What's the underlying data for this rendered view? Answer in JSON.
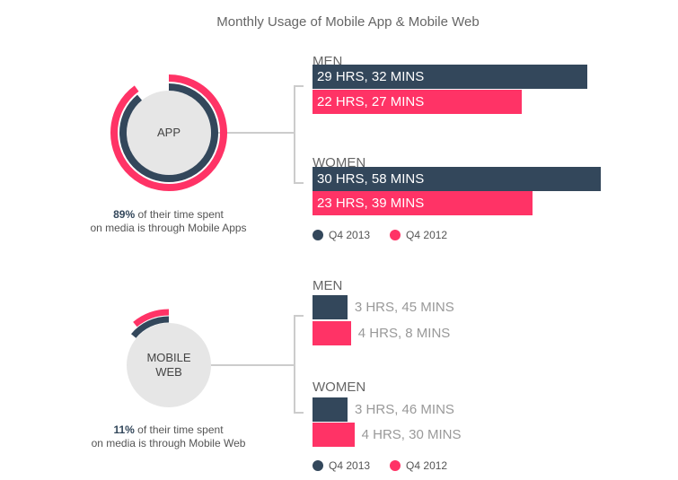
{
  "title": "Monthly Usage of Mobile App & Mobile Web",
  "colors": {
    "q4_2013": "#33475b",
    "q4_2012": "#ff3366"
  },
  "legend": {
    "q4_2013": "Q4 2013",
    "q4_2012": "Q4 2012"
  },
  "chart_data": [
    {
      "type": "bar",
      "section": "APP",
      "share_percent": 89,
      "categories": [
        "MEN",
        "WOMEN"
      ],
      "series": [
        {
          "name": "Q4 2013",
          "values_hours": [
            29.53,
            30.97
          ],
          "labels": [
            "29 HRS, 32 MINS",
            "30 HRS, 58 MINS"
          ]
        },
        {
          "name": "Q4 2012",
          "values_hours": [
            22.45,
            23.65
          ],
          "labels": [
            "22 HRS, 27 MINS",
            "23 HRS, 39 MINS"
          ]
        }
      ],
      "caption_pct": "89%",
      "caption_rest1": " of their time spent",
      "caption_rest2": "on media is through Mobile Apps",
      "circle_label": "APP"
    },
    {
      "type": "bar",
      "section": "MOBILE WEB",
      "share_percent": 11,
      "categories": [
        "MEN",
        "WOMEN"
      ],
      "series": [
        {
          "name": "Q4 2013",
          "values_hours": [
            3.75,
            3.77
          ],
          "labels": [
            "3 HRS, 45 MINS",
            "3 HRS, 46 MINS"
          ]
        },
        {
          "name": "Q4 2012",
          "values_hours": [
            4.13,
            4.5
          ],
          "labels": [
            "4 HRS, 8 MINS",
            "4 HRS, 30 MINS"
          ]
        }
      ],
      "caption_pct": "11%",
      "caption_rest1": " of their time spent",
      "caption_rest2": "on media is through Mobile Web",
      "circle_label": "MOBILE WEB"
    }
  ]
}
